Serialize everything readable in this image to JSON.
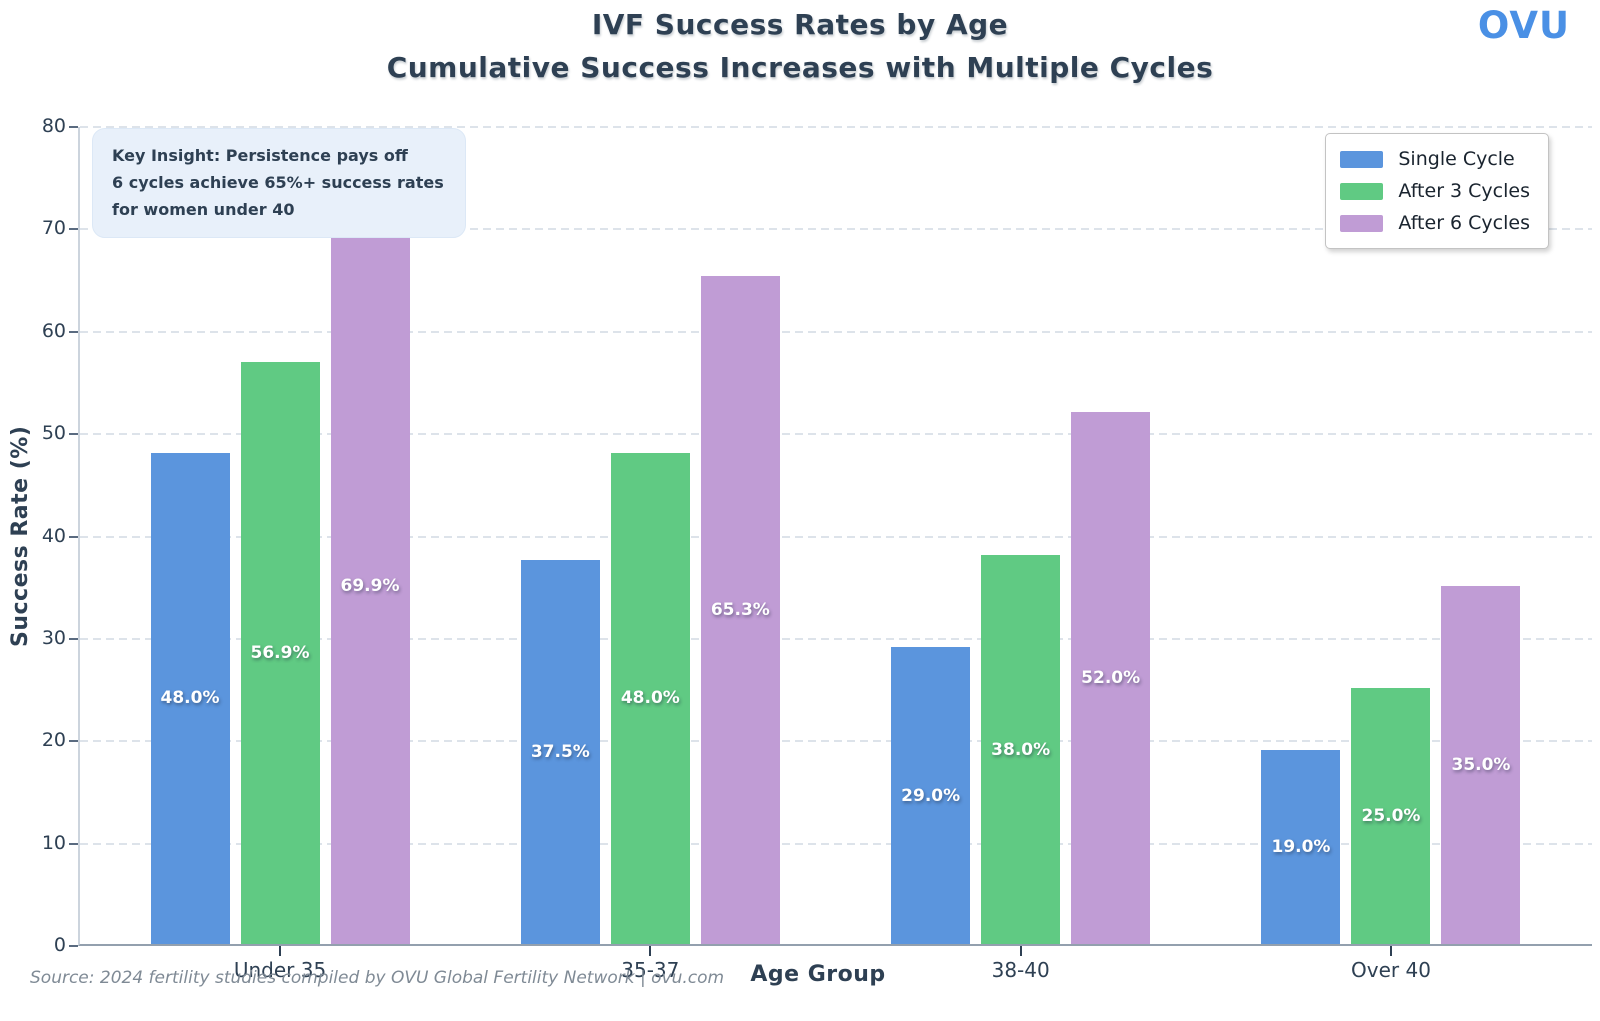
{
  "header": {
    "title": "IVF Success Rates by Age",
    "subtitle": "Cumulative Success Increases with Multiple Cycles",
    "logo": "OVU"
  },
  "insight": {
    "lines": [
      "Key Insight: Persistence pays off",
      "6 cycles achieve 65%+ success rates",
      "for women under 40"
    ]
  },
  "chart_data": {
    "type": "bar",
    "title": "IVF Success Rates by Age",
    "subtitle": "Cumulative Success Increases with Multiple Cycles",
    "categories": [
      "Under 35",
      "35-37",
      "38-40",
      "Over 40"
    ],
    "series": [
      {
        "name": "Single Cycle",
        "color": "#5b95dd",
        "values": [
          48.0,
          37.5,
          29.0,
          19.0
        ]
      },
      {
        "name": "After 3 Cycles",
        "color": "#60ca83",
        "values": [
          56.9,
          48.0,
          38.0,
          25.0
        ]
      },
      {
        "name": "After 6 Cycles",
        "color": "#c09cd5",
        "values": [
          69.9,
          65.3,
          52.0,
          35.0
        ]
      }
    ],
    "value_label_suffix": "%",
    "xlabel": "Age Group",
    "ylabel": "Success Rate (%)",
    "ylim": [
      0,
      80
    ],
    "yticks": [
      0,
      10,
      20,
      30,
      40,
      50,
      60,
      70,
      80
    ],
    "grid": "horizontal-dashed",
    "legend_position": "upper-right"
  },
  "footer": {
    "source": "Source: 2024 fertility studies compiled by OVU Global Fertility Network | ovu.com"
  },
  "colors": {
    "title_text": "#2e4053",
    "logo_blue": "#4a90e5",
    "axis_text": "#2e4053",
    "gridline": "#dde3ea",
    "source_text": "#7f8a95",
    "insight_bg": "#e8f0fa",
    "legend_text": "#1a242f"
  }
}
